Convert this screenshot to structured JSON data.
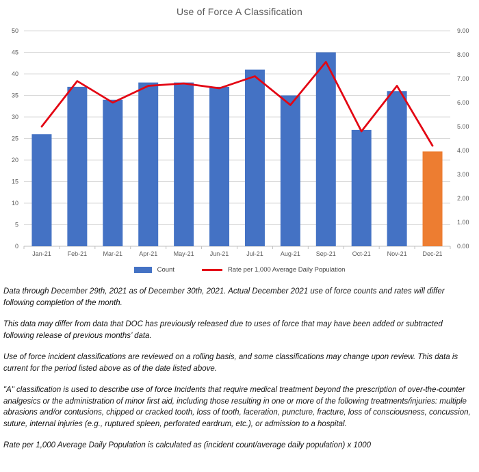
{
  "chart": {
    "title": "Use of Force A Classification",
    "legend": {
      "count": "Count",
      "rate": "Rate per 1,000 Average Daily Population"
    }
  },
  "chart_data": {
    "type": "bar+line",
    "title": "Use of Force A Classification",
    "categories": [
      "Jan-21",
      "Feb-21",
      "Mar-21",
      "Apr-21",
      "May-21",
      "Jun-21",
      "Jul-21",
      "Aug-21",
      "Sep-21",
      "Oct-21",
      "Nov-21",
      "Dec-21"
    ],
    "series": [
      {
        "name": "Count",
        "type": "bar",
        "axis": "left",
        "values": [
          26,
          37,
          34,
          38,
          38,
          37,
          41,
          35,
          45,
          27,
          36,
          22
        ],
        "color": "#4472C4",
        "highlight": {
          "index": 11,
          "color": "#ED7D31"
        }
      },
      {
        "name": "Rate per 1,000 Average Daily Population",
        "type": "line",
        "axis": "right",
        "values": [
          5.0,
          6.9,
          6.0,
          6.7,
          6.8,
          6.6,
          7.1,
          5.9,
          7.7,
          4.8,
          6.7,
          4.2
        ],
        "color": "#e30613"
      }
    ],
    "left_axis_ticks": [
      "0",
      "5",
      "10",
      "15",
      "20",
      "25",
      "30",
      "35",
      "40",
      "45",
      "50"
    ],
    "right_axis_ticks": [
      "0.00",
      "1.00",
      "2.00",
      "3.00",
      "4.00",
      "5.00",
      "6.00",
      "7.00",
      "8.00",
      "9.00"
    ],
    "ylim_left": [
      0,
      50
    ],
    "ylim_right": [
      0,
      9
    ],
    "grid": true,
    "legend_position": "bottom",
    "gridline_color": "#D9D9D9",
    "axis_line_color": "#BFBFBF",
    "tick_label_color": "#595959"
  },
  "notes": [
    "Data through December 29th, 2021 as of December 30th, 2021. Actual December 2021 use of force counts and rates will differ following completion of the month.",
    "This data may differ from data that DOC has previously released due to uses of force that may have been added or subtracted following release of previous months’ data.",
    "Use of force incident classifications are reviewed on a rolling basis, and some classifications may change upon review.  This data is current for the period listed above as of the date listed above.",
    "\"A\" classification is used to describe use of force Incidents that require medical treatment beyond the prescription of over-the-counter analgesics or the administration of minor first aid, including those resulting in one or more of the following treatments/injuries: multiple abrasions and/or contusions, chipped or cracked tooth, loss of tooth, laceration, puncture, fracture, loss of consciousness, concussion, suture, internal injuries (e.g., ruptured spleen, perforated eardrum, etc.), or admission to a hospital.",
    "Rate per 1,000 Average Daily Population is calculated as (incident count/average daily population) x 1000"
  ]
}
